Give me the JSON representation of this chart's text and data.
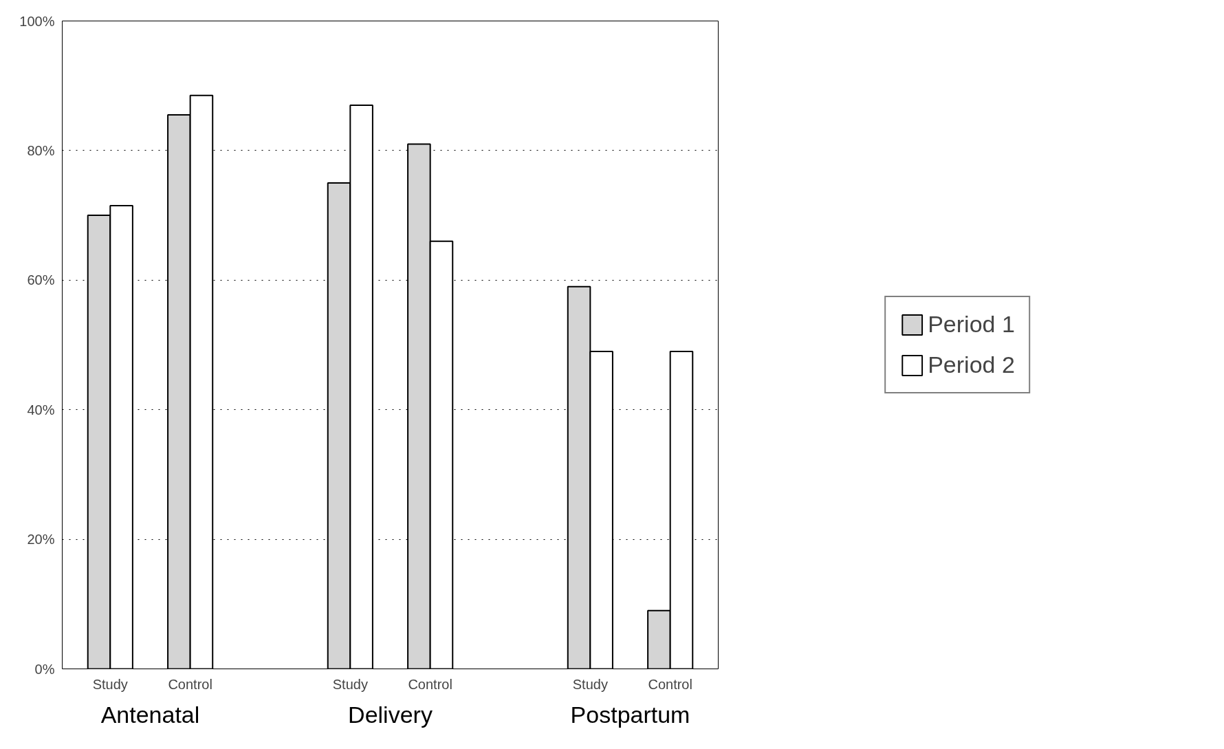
{
  "chart_data": {
    "type": "bar",
    "categories": [
      "Study",
      "Control",
      "Study",
      "Control",
      "Study",
      "Control"
    ],
    "series": [
      {
        "name": "Period 1",
        "color": "#d4d4d4",
        "values": [
          70,
          85.5,
          75,
          81,
          59,
          9
        ]
      },
      {
        "name": "Period 2",
        "color": "#ffffff",
        "values": [
          71.5,
          88.5,
          87,
          66,
          49,
          49
        ]
      }
    ],
    "annotations": [
      "Antenatal",
      "Delivery",
      "Postpartum"
    ],
    "ylim": [
      0,
      100
    ],
    "yticks": [
      {
        "value": 0,
        "label": "0%"
      },
      {
        "value": 20,
        "label": "20%"
      },
      {
        "value": 40,
        "label": "40%"
      },
      {
        "value": 60,
        "label": "60%"
      },
      {
        "value": 80,
        "label": "80%"
      },
      {
        "value": 100,
        "label": "100%"
      }
    ],
    "grid": "y",
    "legend": "right"
  }
}
